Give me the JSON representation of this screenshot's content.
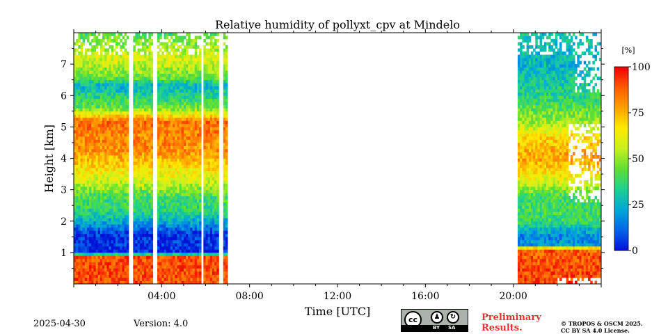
{
  "chart_data": {
    "type": "heatmap",
    "title": "Relative humidity of pollyxt_cpv at Mindelo",
    "xlabel": "Time [UTC]",
    "ylabel": "Height [km]",
    "xlim": [
      0,
      24
    ],
    "ylim": [
      0,
      8
    ],
    "x_tick_values": [
      4,
      8,
      12,
      16,
      20
    ],
    "x_tick_labels": [
      "04:00",
      "08:00",
      "12:00",
      "16:00",
      "20:00"
    ],
    "y_tick_values": [
      1,
      2,
      3,
      4,
      5,
      6,
      7
    ],
    "y_tick_labels": [
      "1",
      "2",
      "3",
      "4",
      "5",
      "6",
      "7"
    ],
    "colorbar": {
      "unit_label": "[%]",
      "range": [
        0,
        100
      ],
      "tick_values": [
        0,
        25,
        50,
        75,
        100
      ],
      "tick_labels": [
        "0",
        "25",
        "50",
        "75",
        "100"
      ],
      "colormap": [
        "#0012d8",
        "#0066e8",
        "#00a8d8",
        "#1fd090",
        "#5fe030",
        "#c8f020",
        "#ffea00",
        "#ffa000",
        "#ff5a00",
        "#ee0000"
      ]
    },
    "data_windows_hours": [
      [
        0.0,
        7.0
      ],
      [
        20.2,
        24.0
      ]
    ],
    "gaps_hours": [
      [
        2.5,
        2.68
      ],
      [
        3.6,
        3.72
      ],
      [
        5.75,
        5.85
      ],
      [
        6.55,
        6.7
      ]
    ],
    "profile_morning": [
      {
        "z": 0.0,
        "rh": 90
      },
      {
        "z": 0.85,
        "rh": 90
      },
      {
        "z": 1.0,
        "rh": 3
      },
      {
        "z": 1.6,
        "rh": 5
      },
      {
        "z": 1.8,
        "rh": 15
      },
      {
        "z": 2.3,
        "rh": 35
      },
      {
        "z": 2.8,
        "rh": 40
      },
      {
        "z": 3.2,
        "rh": 55
      },
      {
        "z": 3.6,
        "rh": 65
      },
      {
        "z": 4.2,
        "rh": 80
      },
      {
        "z": 5.2,
        "rh": 85
      },
      {
        "z": 5.6,
        "rh": 45
      },
      {
        "z": 6.3,
        "rh": 25
      },
      {
        "z": 6.6,
        "rh": 45
      },
      {
        "z": 7.2,
        "rh": 60
      },
      {
        "z": 8.0,
        "rh": 40
      }
    ],
    "profile_evening": [
      {
        "z": 0.0,
        "rh": 92
      },
      {
        "z": 1.1,
        "rh": 88
      },
      {
        "z": 1.25,
        "rh": 20
      },
      {
        "z": 1.5,
        "rh": 15
      },
      {
        "z": 2.0,
        "rh": 38
      },
      {
        "z": 2.8,
        "rh": 40
      },
      {
        "z": 3.3,
        "rh": 60
      },
      {
        "z": 4.0,
        "rh": 78
      },
      {
        "z": 4.6,
        "rh": 70
      },
      {
        "z": 5.2,
        "rh": 50
      },
      {
        "z": 6.0,
        "rh": 35
      },
      {
        "z": 7.0,
        "rh": 25
      },
      {
        "z": 8.0,
        "rh": 30
      }
    ]
  },
  "footer": {
    "date": "2025-04-30",
    "version": "Version: 4.0",
    "preliminary_line1": "Preliminary",
    "preliminary_line2": "Results.",
    "copyright_line1": "© TROPOS & OSCM 2025.",
    "copyright_line2": "CC BY SA 4.0 License.",
    "license_badge": {
      "main": "cc",
      "by": "BY",
      "sa": "SA"
    }
  }
}
